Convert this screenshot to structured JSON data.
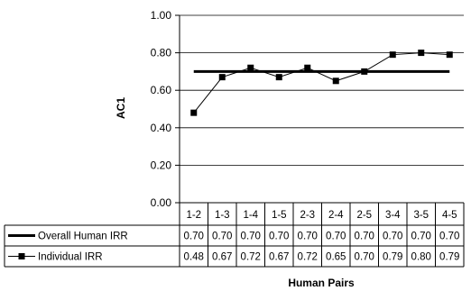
{
  "chart_data": {
    "type": "line",
    "ylabel": "AC1",
    "xlabel": "Human Pairs",
    "ylim": [
      0.0,
      1.0
    ],
    "yticks": [
      "0.00",
      "0.20",
      "0.40",
      "0.60",
      "0.80",
      "1.00"
    ],
    "grid": "horizontal",
    "categories": [
      "1-2",
      "1-3",
      "1-4",
      "1-5",
      "2-3",
      "2-4",
      "2-5",
      "3-4",
      "3-5",
      "4-5"
    ],
    "series": [
      {
        "name": "Overall Human IRR",
        "style": "thick-line",
        "color": "#000000",
        "values": [
          0.7,
          0.7,
          0.7,
          0.7,
          0.7,
          0.7,
          0.7,
          0.7,
          0.7,
          0.7
        ],
        "labels": [
          "0.70",
          "0.70",
          "0.70",
          "0.70",
          "0.70",
          "0.70",
          "0.70",
          "0.70",
          "0.70",
          "0.70"
        ]
      },
      {
        "name": "Individual IRR",
        "style": "line-square-markers",
        "color": "#000000",
        "values": [
          0.48,
          0.67,
          0.72,
          0.67,
          0.72,
          0.65,
          0.7,
          0.79,
          0.8,
          0.79
        ],
        "labels": [
          "0.48",
          "0.67",
          "0.72",
          "0.67",
          "0.72",
          "0.65",
          "0.70",
          "0.79",
          "0.80",
          "0.79"
        ]
      }
    ]
  }
}
